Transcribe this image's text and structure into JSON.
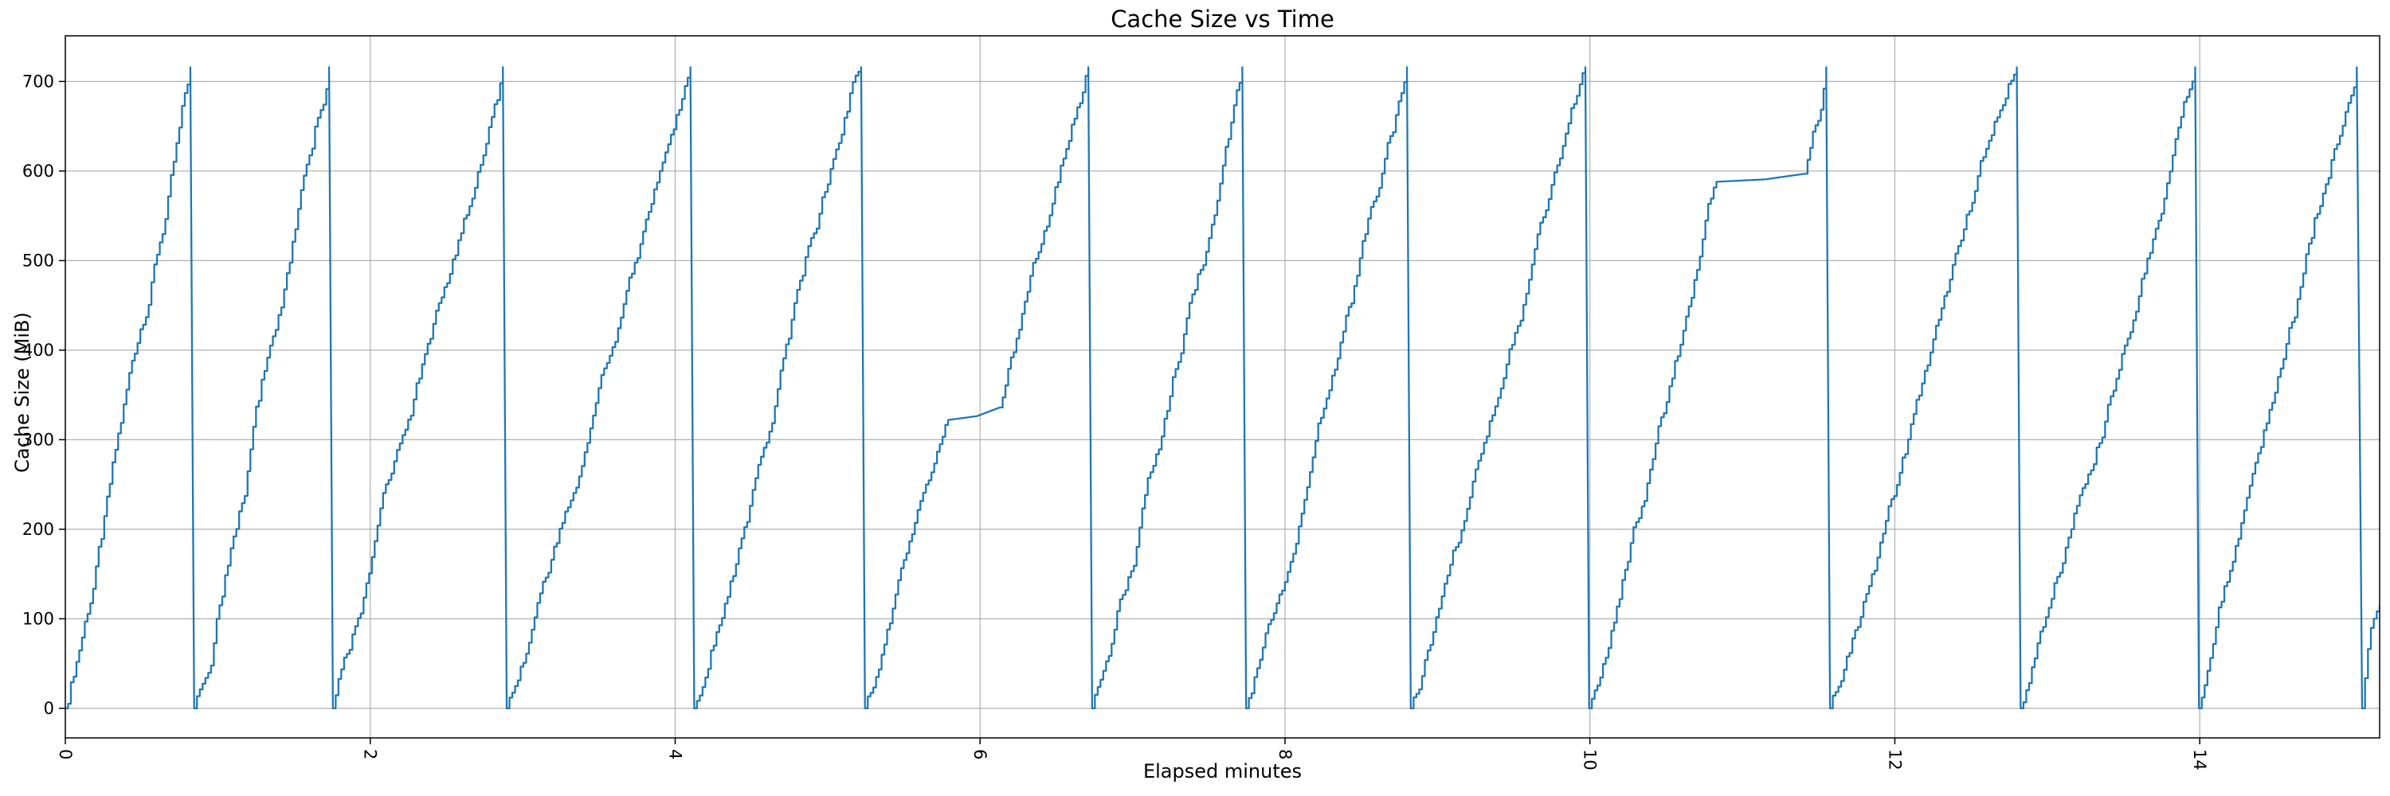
{
  "chart_data": {
    "type": "line",
    "title": "Cache Size vs Time",
    "xlabel": "Elapsed minutes",
    "ylabel": "Cache Size (MiB)",
    "xlim": [
      0,
      15.18
    ],
    "ylim": [
      -33,
      751
    ],
    "xticks": [
      0,
      2,
      4,
      6,
      8,
      10,
      12,
      14
    ],
    "xtick_labels": [
      "0",
      "2",
      "4",
      "6",
      "8",
      "10",
      "12",
      "14"
    ],
    "yticks": [
      0,
      100,
      200,
      300,
      400,
      500,
      600,
      700
    ],
    "ytick_labels": [
      "0",
      "100",
      "200",
      "300",
      "400",
      "500",
      "600",
      "700"
    ],
    "grid": true,
    "legend": "none",
    "colors": {
      "line": "#1f77b4",
      "grid": "#b0b0b0",
      "spine": "#000000",
      "text": "#000000",
      "background": "#ffffff"
    },
    "line_width": 2.3,
    "step_seconds": 1.1,
    "peak_value_mib": 716,
    "trough_value_mib": 0,
    "segments": [
      {
        "type": "rise",
        "t0": 0.0,
        "v0": 0,
        "t1": 0.82,
        "v1": 716
      },
      {
        "type": "drop",
        "t0": 0.82,
        "t1": 0.845,
        "v1": 0
      },
      {
        "type": "rise",
        "t0": 0.845,
        "v0": 0,
        "t1": 1.73,
        "v1": 716
      },
      {
        "type": "drop",
        "t0": 1.73,
        "t1": 1.755,
        "v1": 0
      },
      {
        "type": "rise",
        "t0": 1.755,
        "v0": 0,
        "t1": 2.87,
        "v1": 716
      },
      {
        "type": "drop",
        "t0": 2.87,
        "t1": 2.895,
        "v1": 0
      },
      {
        "type": "rise",
        "t0": 2.895,
        "v0": 0,
        "t1": 4.1,
        "v1": 716
      },
      {
        "type": "drop",
        "t0": 4.1,
        "t1": 4.125,
        "v1": 0
      },
      {
        "type": "rise",
        "t0": 4.125,
        "v0": 0,
        "t1": 5.22,
        "v1": 716
      },
      {
        "type": "drop",
        "t0": 5.22,
        "t1": 5.245,
        "v1": 0
      },
      {
        "type": "rise",
        "t0": 5.245,
        "v0": 0,
        "t1": 5.79,
        "v1": 322
      },
      {
        "type": "plateau",
        "t0": 5.79,
        "v0": 322,
        "t1": 6.13,
        "v1": 336
      },
      {
        "type": "rise",
        "t0": 6.13,
        "v0": 336,
        "t1": 6.71,
        "v1": 716
      },
      {
        "type": "drop",
        "t0": 6.71,
        "t1": 6.735,
        "v1": 0
      },
      {
        "type": "rise",
        "t0": 6.735,
        "v0": 0,
        "t1": 7.72,
        "v1": 716
      },
      {
        "type": "drop",
        "t0": 7.72,
        "t1": 7.745,
        "v1": 0
      },
      {
        "type": "rise",
        "t0": 7.745,
        "v0": 0,
        "t1": 8.8,
        "v1": 716
      },
      {
        "type": "drop",
        "t0": 8.8,
        "t1": 8.825,
        "v1": 0
      },
      {
        "type": "rise",
        "t0": 8.825,
        "v0": 0,
        "t1": 9.97,
        "v1": 716
      },
      {
        "type": "drop",
        "t0": 9.97,
        "t1": 9.995,
        "v1": 0
      },
      {
        "type": "rise",
        "t0": 9.995,
        "v0": 0,
        "t1": 10.83,
        "v1": 588
      },
      {
        "type": "plateau",
        "t0": 10.83,
        "v0": 588,
        "t1": 11.41,
        "v1": 597
      },
      {
        "type": "rise",
        "t0": 11.41,
        "v0": 597,
        "t1": 11.55,
        "v1": 716
      },
      {
        "type": "drop",
        "t0": 11.55,
        "t1": 11.575,
        "v1": 0
      },
      {
        "type": "rise",
        "t0": 11.575,
        "v0": 0,
        "t1": 12.8,
        "v1": 716
      },
      {
        "type": "drop",
        "t0": 12.8,
        "t1": 12.825,
        "v1": 0
      },
      {
        "type": "rise",
        "t0": 12.825,
        "v0": 0,
        "t1": 13.97,
        "v1": 716
      },
      {
        "type": "drop",
        "t0": 13.97,
        "t1": 13.995,
        "v1": 0
      },
      {
        "type": "rise",
        "t0": 13.995,
        "v0": 0,
        "t1": 15.03,
        "v1": 716
      },
      {
        "type": "drop",
        "t0": 15.03,
        "t1": 15.065,
        "v1": 0
      },
      {
        "type": "rise",
        "t0": 15.065,
        "v0": 0,
        "t1": 15.18,
        "v1": 115
      }
    ]
  }
}
